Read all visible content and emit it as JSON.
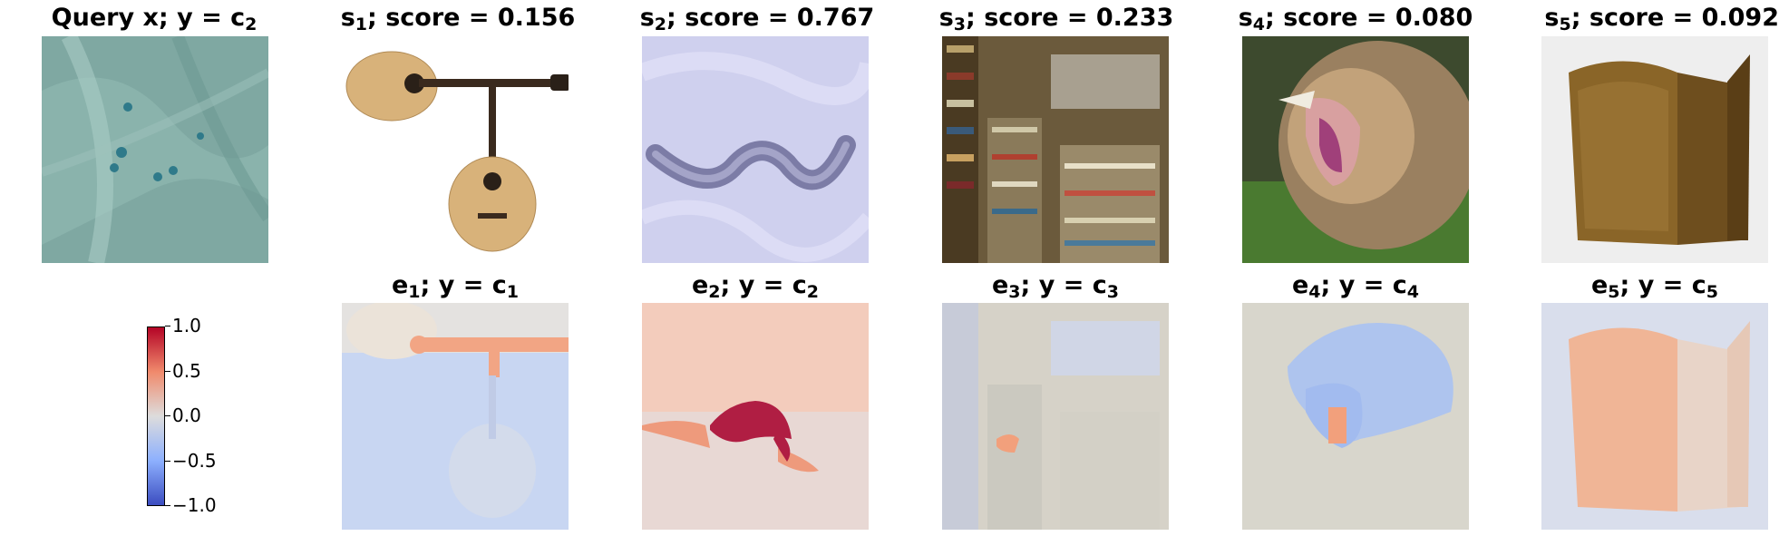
{
  "query": {
    "prefix": "Query x; y = c",
    "sub": "2"
  },
  "samples": [
    {
      "sym": "s",
      "sub": "1",
      "suffix": "; score = 0.156"
    },
    {
      "sym": "s",
      "sub": "2",
      "suffix": "; score = 0.767"
    },
    {
      "sym": "s",
      "sub": "3",
      "suffix": "; score = 0.233"
    },
    {
      "sym": "s",
      "sub": "4",
      "suffix": "; score = 0.080"
    },
    {
      "sym": "s",
      "sub": "5",
      "suffix": "; score = 0.092"
    }
  ],
  "explanations": [
    {
      "sym": "e",
      "sub": "1",
      "mid": "; y = c",
      "sub2": "1"
    },
    {
      "sym": "e",
      "sub": "2",
      "mid": "; y = c",
      "sub2": "2"
    },
    {
      "sym": "e",
      "sub": "3",
      "mid": "; y = c",
      "sub2": "3"
    },
    {
      "sym": "e",
      "sub": "4",
      "mid": "; y = c",
      "sub2": "4"
    },
    {
      "sym": "e",
      "sub": "5",
      "mid": "; y = c",
      "sub2": "5"
    }
  ],
  "colorbar": {
    "ticks": [
      "1.0",
      "0.5",
      "0.0",
      "−0.5",
      "−1.0"
    ],
    "range": [
      -1.0,
      1.0
    ],
    "colormap": "coolwarm",
    "colors": {
      "high": "#b40426",
      "mid": "#dddcdc",
      "low": "#3b4cc0"
    }
  },
  "images": {
    "query": "cell-microscopy-image",
    "s1": "guitar-image",
    "s2": "smoke-swirl-image",
    "s3": "bookshop-image",
    "s4": "roaring-lion-image",
    "s5": "ornate-box-image"
  }
}
